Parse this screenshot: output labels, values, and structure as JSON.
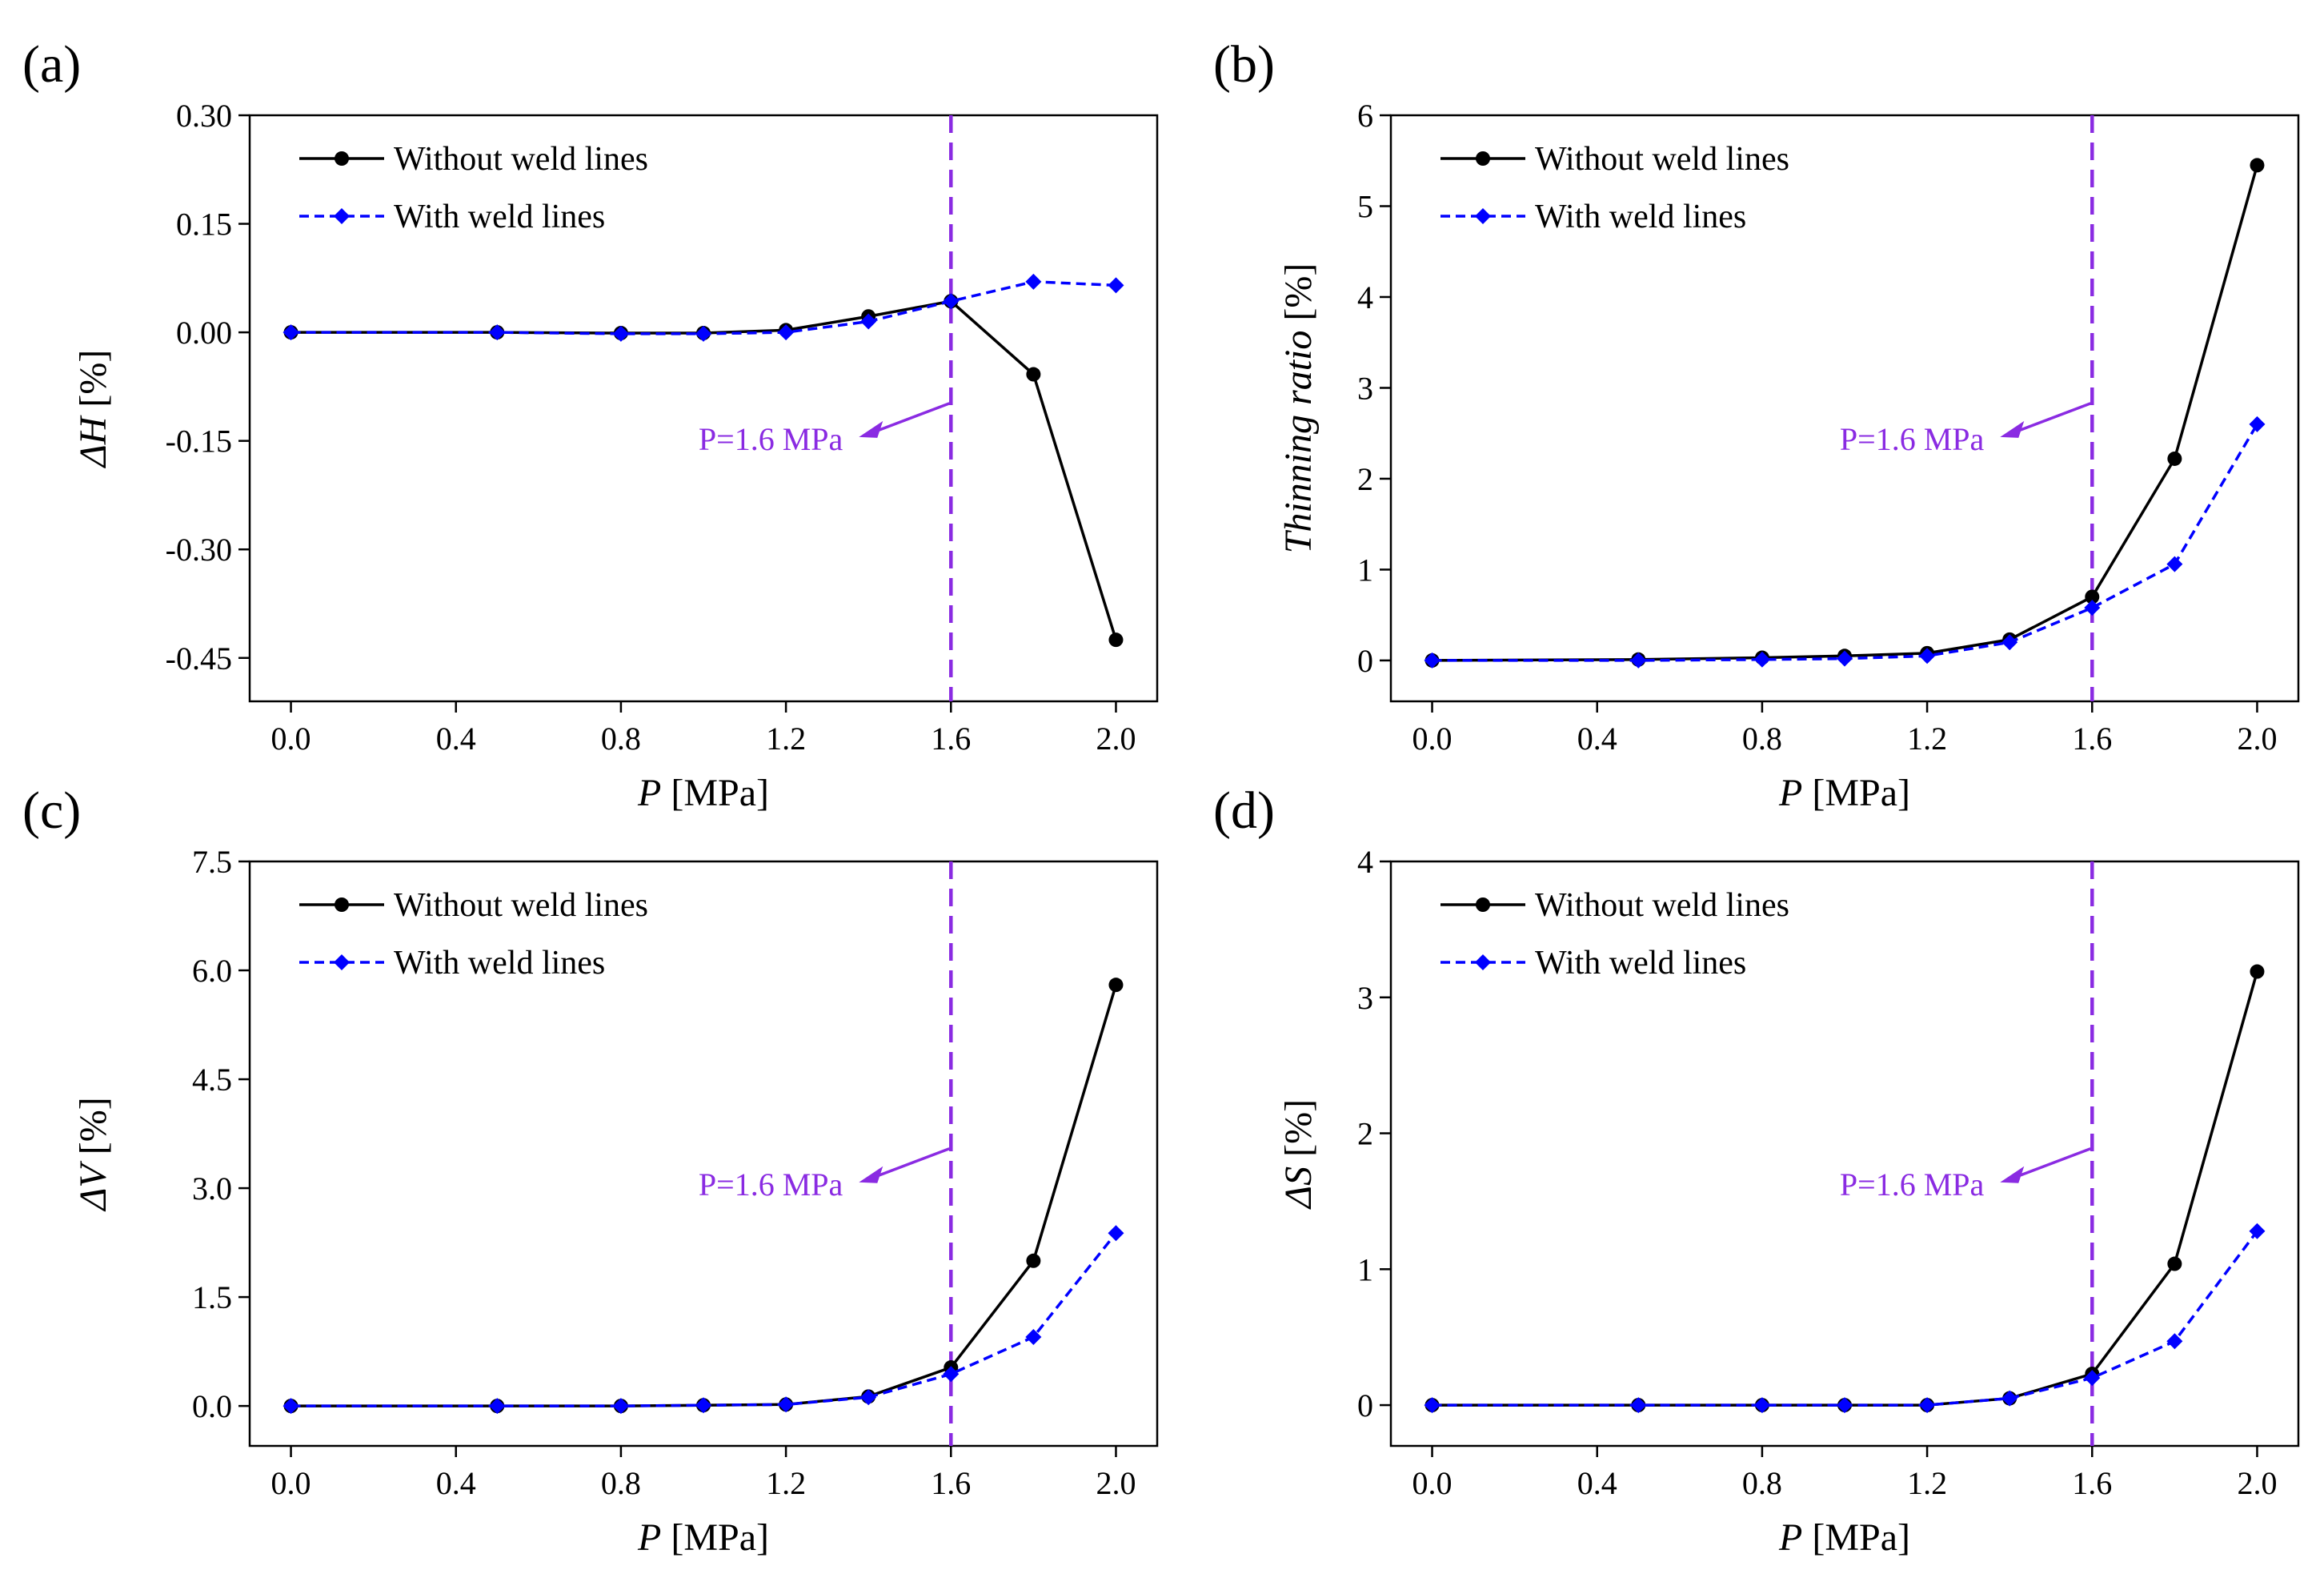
{
  "colors": {
    "without": "#000000",
    "with": "#0000ff",
    "marker_line": "#8a2be2"
  },
  "chart_data": [
    {
      "type": "line",
      "panel_label": "(a)",
      "title": "",
      "xlabel_var": "P",
      "xlabel_unit": " [MPa]",
      "ylabel": "ΔH [%]",
      "ylabel_var": "ΔH",
      "ylabel_unit": " [%]",
      "xlim": [
        -0.1,
        2.1
      ],
      "ylim": [
        -0.51,
        0.3
      ],
      "xticks": [
        0.0,
        0.4,
        0.8,
        1.2,
        1.6,
        2.0
      ],
      "xtick_labels": [
        "0.0",
        "0.4",
        "0.8",
        "1.2",
        "1.6",
        "2.0"
      ],
      "yticks": [
        0.3,
        0.15,
        0.0,
        -0.15,
        -0.3,
        -0.45
      ],
      "ytick_labels": [
        "0.30",
        "0.15",
        "0.00",
        "-0.15",
        "-0.30",
        "-0.45"
      ],
      "x": [
        0.0,
        0.5,
        0.8,
        1.0,
        1.2,
        1.4,
        1.6,
        1.8,
        2.0
      ],
      "series": [
        {
          "name": "Without weld lines",
          "values": [
            0.0,
            0.0,
            -0.001,
            -0.001,
            0.003,
            0.022,
            0.043,
            -0.058,
            -0.425
          ]
        },
        {
          "name": "With weld lines",
          "values": [
            0.0,
            0.0,
            -0.002,
            -0.002,
            0.0,
            0.015,
            0.043,
            0.07,
            0.065
          ]
        }
      ],
      "vline_x": 1.6,
      "annotation": {
        "text": "P=1.6 MPa",
        "x": 1.6
      }
    },
    {
      "type": "line",
      "panel_label": "(b)",
      "title": "",
      "xlabel_var": "P",
      "xlabel_unit": " [MPa]",
      "ylabel": "Thinning ratio [%]",
      "ylabel_var": "Thinning ratio",
      "ylabel_unit": " [%]",
      "xlim": [
        -0.1,
        2.1
      ],
      "ylim": [
        -0.45,
        6
      ],
      "xticks": [
        0.0,
        0.4,
        0.8,
        1.2,
        1.6,
        2.0
      ],
      "xtick_labels": [
        "0.0",
        "0.4",
        "0.8",
        "1.2",
        "1.6",
        "2.0"
      ],
      "yticks": [
        0,
        1,
        2,
        3,
        4,
        5,
        6
      ],
      "ytick_labels": [
        "0",
        "1",
        "2",
        "3",
        "4",
        "5",
        "6"
      ],
      "x": [
        0.0,
        0.5,
        0.8,
        1.0,
        1.2,
        1.4,
        1.6,
        1.8,
        2.0
      ],
      "series": [
        {
          "name": "Without weld lines",
          "values": [
            0.0,
            0.01,
            0.03,
            0.05,
            0.08,
            0.23,
            0.7,
            2.22,
            5.45
          ]
        },
        {
          "name": "With weld lines",
          "values": [
            0.0,
            0.0,
            0.01,
            0.02,
            0.05,
            0.2,
            0.58,
            1.06,
            2.6
          ]
        }
      ],
      "vline_x": 1.6,
      "annotation": {
        "text": "P=1.6 MPa",
        "x": 1.6
      }
    },
    {
      "type": "line",
      "panel_label": "(c)",
      "title": "",
      "xlabel_var": "P",
      "xlabel_unit": " [MPa]",
      "ylabel": "ΔV [%]",
      "ylabel_var": "ΔV",
      "ylabel_unit": " [%]",
      "xlim": [
        -0.1,
        2.1
      ],
      "ylim": [
        -0.55,
        7.5
      ],
      "xticks": [
        0.0,
        0.4,
        0.8,
        1.2,
        1.6,
        2.0
      ],
      "xtick_labels": [
        "0.0",
        "0.4",
        "0.8",
        "1.2",
        "1.6",
        "2.0"
      ],
      "yticks": [
        0.0,
        1.5,
        3.0,
        4.5,
        6.0,
        7.5
      ],
      "ytick_labels": [
        "0.0",
        "1.5",
        "3.0",
        "4.5",
        "6.0",
        "7.5"
      ],
      "x": [
        0.0,
        0.5,
        0.8,
        1.0,
        1.2,
        1.4,
        1.6,
        1.8,
        2.0
      ],
      "series": [
        {
          "name": "Without weld lines",
          "values": [
            0.0,
            0.0,
            0.0,
            0.01,
            0.02,
            0.13,
            0.53,
            2.0,
            5.8
          ]
        },
        {
          "name": "With weld lines",
          "values": [
            0.0,
            0.0,
            0.0,
            0.01,
            0.02,
            0.12,
            0.44,
            0.95,
            2.38
          ]
        }
      ],
      "vline_x": 1.6,
      "annotation": {
        "text": "P=1.6 MPa",
        "x": 1.6
      }
    },
    {
      "type": "line",
      "panel_label": "(d)",
      "title": "",
      "xlabel_var": "P",
      "xlabel_unit": " [MPa]",
      "ylabel": "ΔS [%]",
      "ylabel_var": "ΔS",
      "ylabel_unit": " [%]",
      "xlim": [
        -0.1,
        2.1
      ],
      "ylim": [
        -0.3,
        4
      ],
      "xticks": [
        0.0,
        0.4,
        0.8,
        1.2,
        1.6,
        2.0
      ],
      "xtick_labels": [
        "0.0",
        "0.4",
        "0.8",
        "1.2",
        "1.6",
        "2.0"
      ],
      "yticks": [
        0,
        1,
        2,
        3,
        4
      ],
      "ytick_labels": [
        "0",
        "1",
        "2",
        "3",
        "4"
      ],
      "x": [
        0.0,
        0.5,
        0.8,
        1.0,
        1.2,
        1.4,
        1.6,
        1.8,
        2.0
      ],
      "series": [
        {
          "name": "Without weld lines",
          "values": [
            0.0,
            0.0,
            0.0,
            0.0,
            0.0,
            0.05,
            0.23,
            1.04,
            3.19
          ]
        },
        {
          "name": "With weld lines",
          "values": [
            0.0,
            0.0,
            0.0,
            0.0,
            0.0,
            0.05,
            0.2,
            0.47,
            1.28
          ]
        }
      ],
      "vline_x": 1.6,
      "annotation": {
        "text": "P=1.6 MPa",
        "x": 1.6
      }
    }
  ]
}
